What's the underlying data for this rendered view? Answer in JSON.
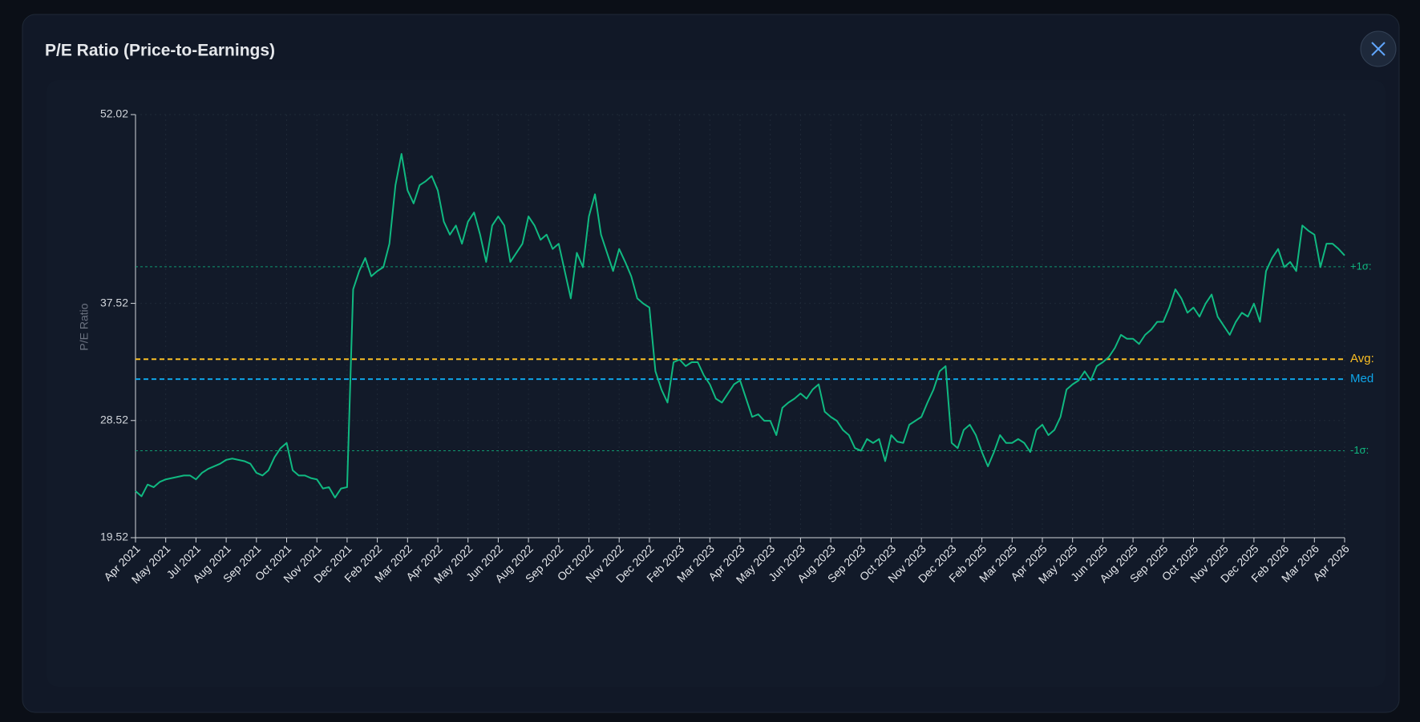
{
  "title": "P/E Ratio (Price-to-Earnings)",
  "chart_data": {
    "type": "line",
    "ylabel": "P/E Ratio",
    "color": "#10b981",
    "ylim": [
      19.52,
      52.02
    ],
    "yticks": [
      19.52,
      28.52,
      37.52,
      52.02
    ],
    "grid": true,
    "categories": [
      "Apr 2021",
      null,
      null,
      null,
      null,
      "May 2021",
      null,
      null,
      null,
      null,
      "Jul 2021",
      null,
      null,
      null,
      null,
      "Aug 2021",
      null,
      null,
      null,
      null,
      "Sep 2021",
      null,
      null,
      null,
      null,
      "Oct 2021",
      null,
      null,
      null,
      null,
      "Nov 2021",
      null,
      null,
      null,
      null,
      "Dec 2021",
      null,
      null,
      null,
      null,
      "Feb 2022",
      null,
      null,
      null,
      null,
      "Mar 2022",
      null,
      null,
      null,
      null,
      "Apr 2022",
      null,
      null,
      null,
      null,
      "May 2022",
      null,
      null,
      null,
      null,
      "Jun 2022",
      null,
      null,
      null,
      null,
      "Aug 2022",
      null,
      null,
      null,
      null,
      "Sep 2022",
      null,
      null,
      null,
      null,
      "Oct 2022",
      null,
      null,
      null,
      null,
      "Nov 2022",
      null,
      null,
      null,
      null,
      "Dec 2022",
      null,
      null,
      null,
      null,
      "Feb 2023",
      null,
      null,
      null,
      null,
      "Mar 2023",
      null,
      null,
      null,
      null,
      "Apr 2023",
      null,
      null,
      null,
      null,
      "May 2023",
      null,
      null,
      null,
      null,
      "Jun 2023",
      null,
      null,
      null,
      null,
      "Aug 2023",
      null,
      null,
      null,
      null,
      "Sep 2023",
      null,
      null,
      null,
      null,
      "Oct 2023",
      null,
      null,
      null,
      null,
      "Nov 2023",
      null,
      null,
      null,
      null,
      "Dec 2023",
      null,
      null,
      null,
      null,
      "Feb 2025",
      null,
      null,
      null,
      null,
      "Mar 2025",
      null,
      null,
      null,
      null,
      "Apr 2025",
      null,
      null,
      null,
      null,
      "May 2025",
      null,
      null,
      null,
      null,
      "Jun 2025",
      null,
      null,
      null,
      null,
      "Aug 2025",
      null,
      null,
      null,
      null,
      "Sep 2025",
      null,
      null,
      null,
      null,
      "Oct 2025",
      null,
      null,
      null,
      null,
      "Nov 2025",
      null,
      null,
      null,
      null,
      "Dec 2025",
      null,
      null,
      null,
      null,
      "Feb 2026",
      null,
      null,
      null,
      null,
      "Mar 2026",
      null,
      null,
      null,
      null,
      "Apr 2026"
    ],
    "values": [
      23.1,
      22.7,
      23.6,
      23.4,
      23.8,
      24.0,
      24.1,
      24.2,
      24.3,
      24.3,
      24.0,
      24.5,
      24.8,
      25.0,
      25.2,
      25.5,
      25.6,
      25.5,
      25.4,
      25.2,
      24.5,
      24.3,
      24.7,
      25.7,
      26.4,
      26.8,
      24.7,
      24.3,
      24.3,
      24.1,
      24.0,
      23.3,
      23.4,
      22.6,
      23.3,
      23.4,
      38.6,
      40.0,
      41.0,
      39.6,
      40.0,
      40.3,
      42.1,
      46.6,
      49.0,
      46.2,
      45.2,
      46.6,
      46.9,
      47.3,
      46.2,
      43.8,
      42.8,
      43.5,
      42.1,
      43.8,
      44.5,
      42.8,
      40.7,
      43.5,
      44.2,
      43.5,
      40.7,
      41.4,
      42.1,
      44.2,
      43.5,
      42.4,
      42.8,
      41.7,
      42.1,
      40.0,
      37.9,
      41.4,
      40.3,
      44.2,
      45.9,
      42.8,
      41.4,
      40.0,
      41.7,
      40.7,
      39.6,
      37.9,
      37.5,
      37.2,
      32.3,
      30.9,
      29.9,
      33.0,
      33.2,
      32.7,
      33.0,
      33.0,
      32.0,
      31.3,
      30.2,
      29.9,
      30.6,
      31.3,
      31.6,
      30.2,
      28.8,
      29.0,
      28.5,
      28.5,
      27.4,
      29.5,
      29.9,
      30.2,
      30.6,
      30.2,
      30.9,
      31.3,
      29.2,
      28.8,
      28.5,
      27.8,
      27.4,
      26.4,
      26.2,
      27.1,
      26.8,
      27.1,
      25.4,
      27.4,
      26.9,
      26.8,
      28.2,
      28.5,
      28.8,
      29.9,
      30.9,
      32.3,
      32.7,
      26.8,
      26.4,
      27.8,
      28.2,
      27.4,
      26.1,
      25.0,
      26.1,
      27.4,
      26.8,
      26.8,
      27.1,
      26.8,
      26.1,
      27.8,
      28.2,
      27.4,
      27.8,
      28.8,
      30.9,
      31.3,
      31.6,
      32.3,
      31.6,
      32.7,
      33.0,
      33.4,
      34.1,
      35.1,
      34.8,
      34.8,
      34.4,
      35.1,
      35.5,
      36.1,
      36.1,
      37.2,
      38.6,
      37.9,
      36.8,
      37.2,
      36.5,
      37.5,
      38.2,
      36.5,
      35.8,
      35.1,
      36.1,
      36.8,
      36.5,
      37.5,
      36.1,
      40.0,
      41.0,
      41.7,
      40.3,
      40.7,
      40.0,
      43.5,
      43.1,
      42.8,
      40.3,
      42.1,
      42.1,
      41.7,
      41.2
    ],
    "reference_lines": [
      {
        "label": "+1σ:",
        "value": 40.33,
        "color": "#10b981",
        "dash": "dotted"
      },
      {
        "label": "Avg:",
        "value": 33.23,
        "color": "#fbbf24",
        "dash": "dashed"
      },
      {
        "label": "Med",
        "value": 31.7,
        "color": "#0ea5e9",
        "dash": "dashed"
      },
      {
        "label": "-1σ:",
        "value": 26.2,
        "color": "#10b981",
        "dash": "dotted"
      }
    ]
  }
}
